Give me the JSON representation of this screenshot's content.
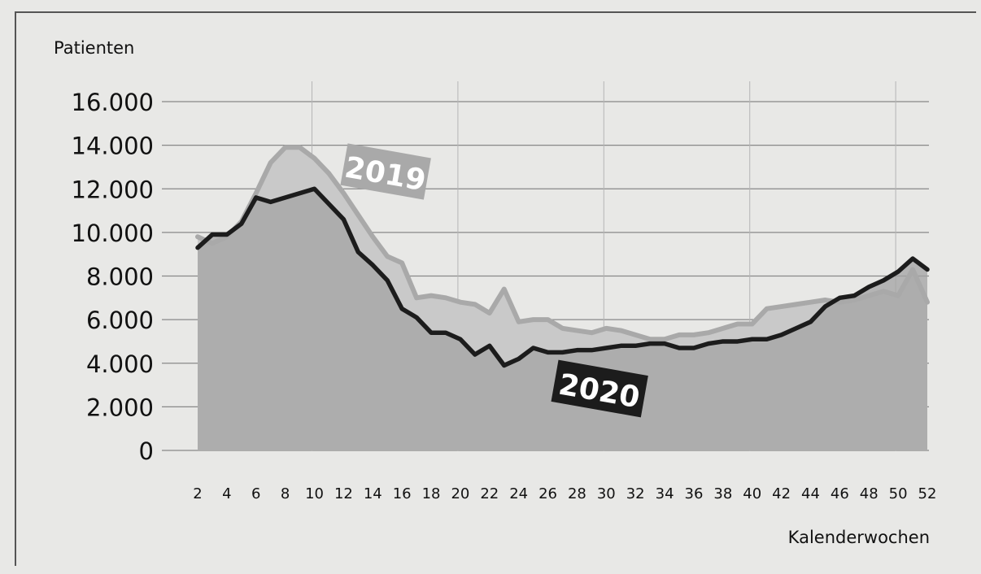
{
  "chart_data": {
    "type": "area",
    "title": "",
    "xlabel": "Kalenderwochen",
    "ylabel": "Patienten",
    "xlim": [
      2,
      52
    ],
    "ylim": [
      0,
      16000
    ],
    "y_ticks": [
      0,
      2000,
      4000,
      6000,
      8000,
      10000,
      12000,
      14000,
      16000
    ],
    "y_tick_labels": [
      "0",
      "2.000",
      "4.000",
      "6.000",
      "8.000",
      "10.000",
      "12.000",
      "14.000",
      "16.000"
    ],
    "x_ticks": [
      2,
      4,
      6,
      8,
      10,
      12,
      14,
      16,
      18,
      20,
      22,
      24,
      26,
      28,
      30,
      32,
      34,
      36,
      38,
      40,
      42,
      44,
      46,
      48,
      50,
      52
    ],
    "x_tick_labels": [
      "2",
      "4",
      "6",
      "8",
      "10",
      "12",
      "14",
      "16",
      "18",
      "20",
      "22",
      "24",
      "26",
      "28",
      "30",
      "32",
      "34",
      "36",
      "38",
      "40",
      "42",
      "44",
      "46",
      "48",
      "50",
      "52"
    ],
    "grid": true,
    "series": [
      {
        "name": "2019",
        "color": "#a9a9a9",
        "x": [
          2,
          3,
          4,
          5,
          6,
          7,
          8,
          9,
          10,
          11,
          12,
          13,
          14,
          15,
          16,
          17,
          18,
          19,
          20,
          21,
          22,
          23,
          24,
          25,
          26,
          27,
          28,
          29,
          30,
          31,
          32,
          33,
          34,
          35,
          36,
          37,
          38,
          39,
          40,
          41,
          42,
          43,
          44,
          45,
          46,
          47,
          48,
          49,
          50,
          51,
          52
        ],
        "values": [
          9800,
          9500,
          9800,
          10500,
          11800,
          13200,
          13900,
          13900,
          13400,
          12700,
          11800,
          10800,
          9800,
          8900,
          8600,
          7000,
          7100,
          7000,
          6800,
          6700,
          6300,
          7400,
          5900,
          6000,
          6000,
          5600,
          5500,
          5400,
          5600,
          5500,
          5300,
          5100,
          5100,
          5300,
          5300,
          5400,
          5600,
          5800,
          5800,
          6500,
          6600,
          6700,
          6800,
          6900,
          6800,
          6900,
          7100,
          7300,
          7100,
          8300,
          6800
        ]
      },
      {
        "name": "2020",
        "color": "#1c1c1c",
        "x": [
          2,
          3,
          4,
          5,
          6,
          7,
          8,
          9,
          10,
          11,
          12,
          13,
          14,
          15,
          16,
          17,
          18,
          19,
          20,
          21,
          22,
          23,
          24,
          25,
          26,
          27,
          28,
          29,
          30,
          31,
          32,
          33,
          34,
          35,
          36,
          37,
          38,
          39,
          40,
          41,
          42,
          43,
          44,
          45,
          46,
          47,
          48,
          49,
          50,
          51,
          52
        ],
        "values": [
          9300,
          9900,
          9900,
          10400,
          11600,
          11400,
          11600,
          11800,
          12000,
          11300,
          10600,
          9100,
          8500,
          7800,
          6500,
          6100,
          5400,
          5400,
          5100,
          4400,
          4800,
          3900,
          4200,
          4700,
          4500,
          4500,
          4600,
          4600,
          4700,
          4800,
          4800,
          4900,
          4900,
          4700,
          4700,
          4900,
          5000,
          5000,
          5100,
          5100,
          5300,
          5600,
          5900,
          6600,
          7000,
          7100,
          7500,
          7800,
          8200,
          8800,
          8300
        ]
      }
    ],
    "annotations": [
      "2019",
      "2020"
    ]
  }
}
